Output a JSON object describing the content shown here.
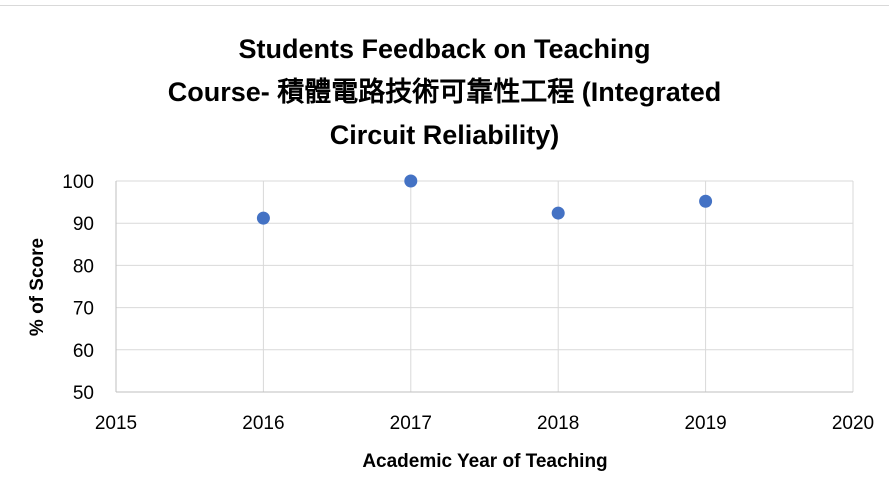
{
  "chart_data": {
    "type": "scatter",
    "title_lines": [
      "Students Feedback on Teaching",
      "Course- 積體電路技術可靠性工程 (Integrated",
      "Circuit Reliability)"
    ],
    "xlabel": "Academic Year of Teaching",
    "ylabel": "% of Score",
    "xlim": [
      2015,
      2020
    ],
    "ylim": [
      50,
      100
    ],
    "xticks": [
      "2015",
      "2016",
      "2017",
      "2018",
      "2019",
      "2020"
    ],
    "yticks": [
      "50",
      "60",
      "70",
      "80",
      "90",
      "100"
    ],
    "grid": true,
    "legend": "none",
    "marker_color": "#4472c4",
    "points": [
      {
        "x": 2016,
        "y": 91.2
      },
      {
        "x": 2017,
        "y": 100
      },
      {
        "x": 2018,
        "y": 92.4
      },
      {
        "x": 2019,
        "y": 95.2
      }
    ]
  }
}
